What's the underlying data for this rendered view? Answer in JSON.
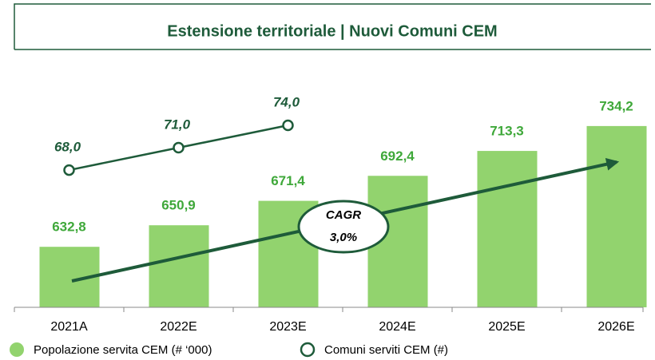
{
  "chart_data": {
    "type": "bar",
    "title": "Estensione territoriale | Nuovi Comuni CEM",
    "categories": [
      "2021A",
      "2022E",
      "2023E",
      "2024E",
      "2025E",
      "2026E"
    ],
    "series": [
      {
        "name": "Popolazione servita CEM (# ‘000)",
        "type": "bar",
        "color": "#92d36e",
        "label_color": "#3fa83a",
        "values": [
          632.8,
          650.9,
          671.4,
          692.4,
          713.3,
          734.2
        ],
        "value_labels": [
          "632,8",
          "650,9",
          "671,4",
          "692,4",
          "713,3",
          "734,2"
        ]
      },
      {
        "name": "Comuni serviti CEM (#)",
        "type": "line",
        "axis": "y2",
        "color": "#1e5b3a",
        "label_color": "#1e5b3a",
        "values": [
          68.0,
          71.0,
          74.0,
          null,
          null,
          null
        ],
        "value_labels": [
          "68,0",
          "71,0",
          "74,0",
          null,
          null,
          null
        ]
      }
    ],
    "ylim": [
      582,
      773
    ],
    "y2lim": [
      49.6,
      80.1
    ],
    "annotation": {
      "title": "CAGR",
      "value": "3,0%"
    }
  }
}
